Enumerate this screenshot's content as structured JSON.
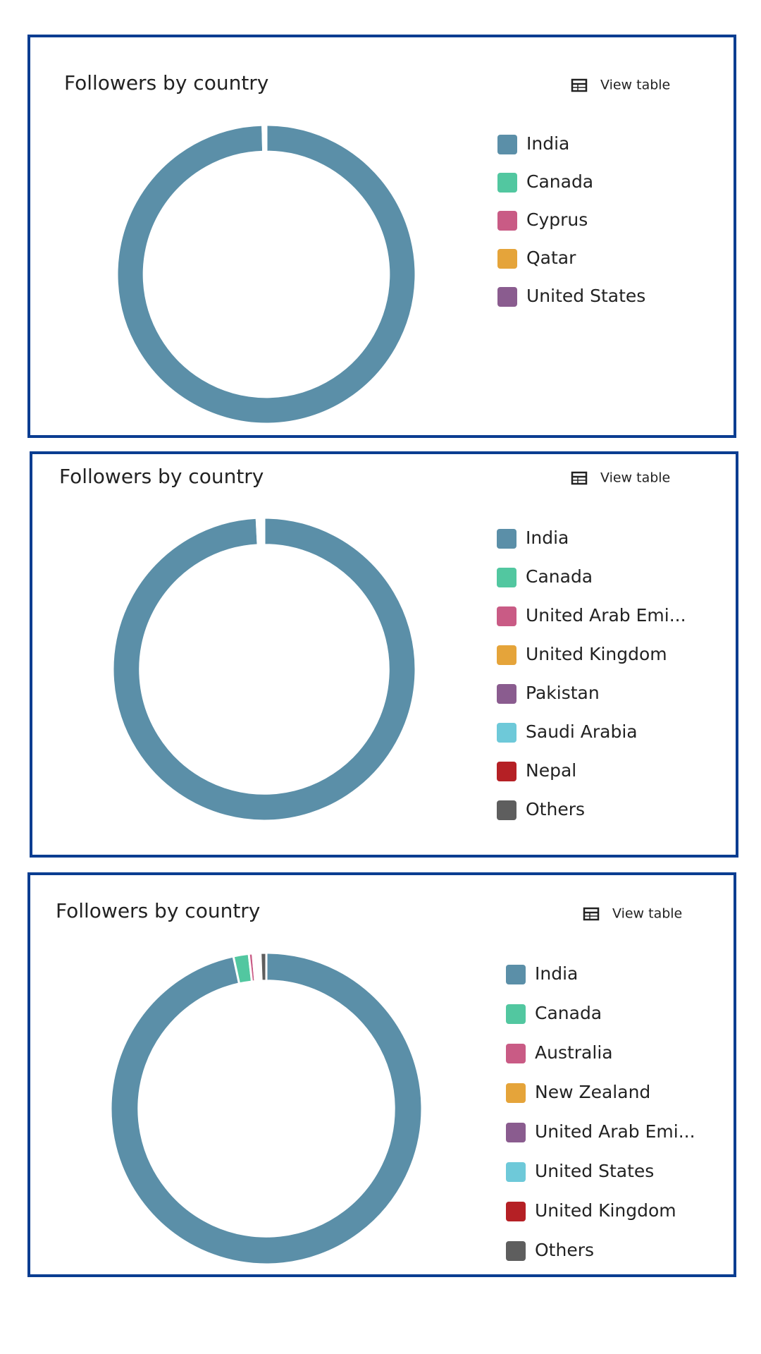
{
  "chart_data": [
    {
      "type": "donut",
      "title": "Followers by country",
      "button": "View table",
      "categories": [
        "India",
        "Canada",
        "Cyprus",
        "Qatar",
        "United States"
      ],
      "values": [
        99.6,
        0.1,
        0.1,
        0.1,
        0.1
      ],
      "colors": [
        "#5b8fa8",
        "#52c7a0",
        "#c95b85",
        "#e5a43a",
        "#8a5c8f"
      ]
    },
    {
      "type": "donut",
      "title": "Followers by country",
      "button": "View table",
      "categories": [
        "India",
        "Canada",
        "United Arab Emi...",
        "United Kingdom",
        "Pakistan",
        "Saudi Arabia",
        "Nepal",
        "Others"
      ],
      "values": [
        99.2,
        0.2,
        0.1,
        0.1,
        0.1,
        0.1,
        0.1,
        0.1
      ],
      "colors": [
        "#5b8fa8",
        "#52c7a0",
        "#c95b85",
        "#e5a43a",
        "#8a5c8f",
        "#6ec9d9",
        "#b52025",
        "#5e5e5e"
      ]
    },
    {
      "type": "donut",
      "title": "Followers by country",
      "button": "View table",
      "categories": [
        "India",
        "Canada",
        "Australia",
        "New Zealand",
        "United Arab Emi...",
        "United States",
        "United Kingdom",
        "Others"
      ],
      "values": [
        96.6,
        1.6,
        0.4,
        0.2,
        0.2,
        0.2,
        0.2,
        0.6
      ],
      "colors": [
        "#5b8fa8",
        "#52c7a0",
        "#c95b85",
        "#e5a43a",
        "#8a5c8f",
        "#6ec9d9",
        "#b52025",
        "#5e5e5e"
      ]
    }
  ]
}
